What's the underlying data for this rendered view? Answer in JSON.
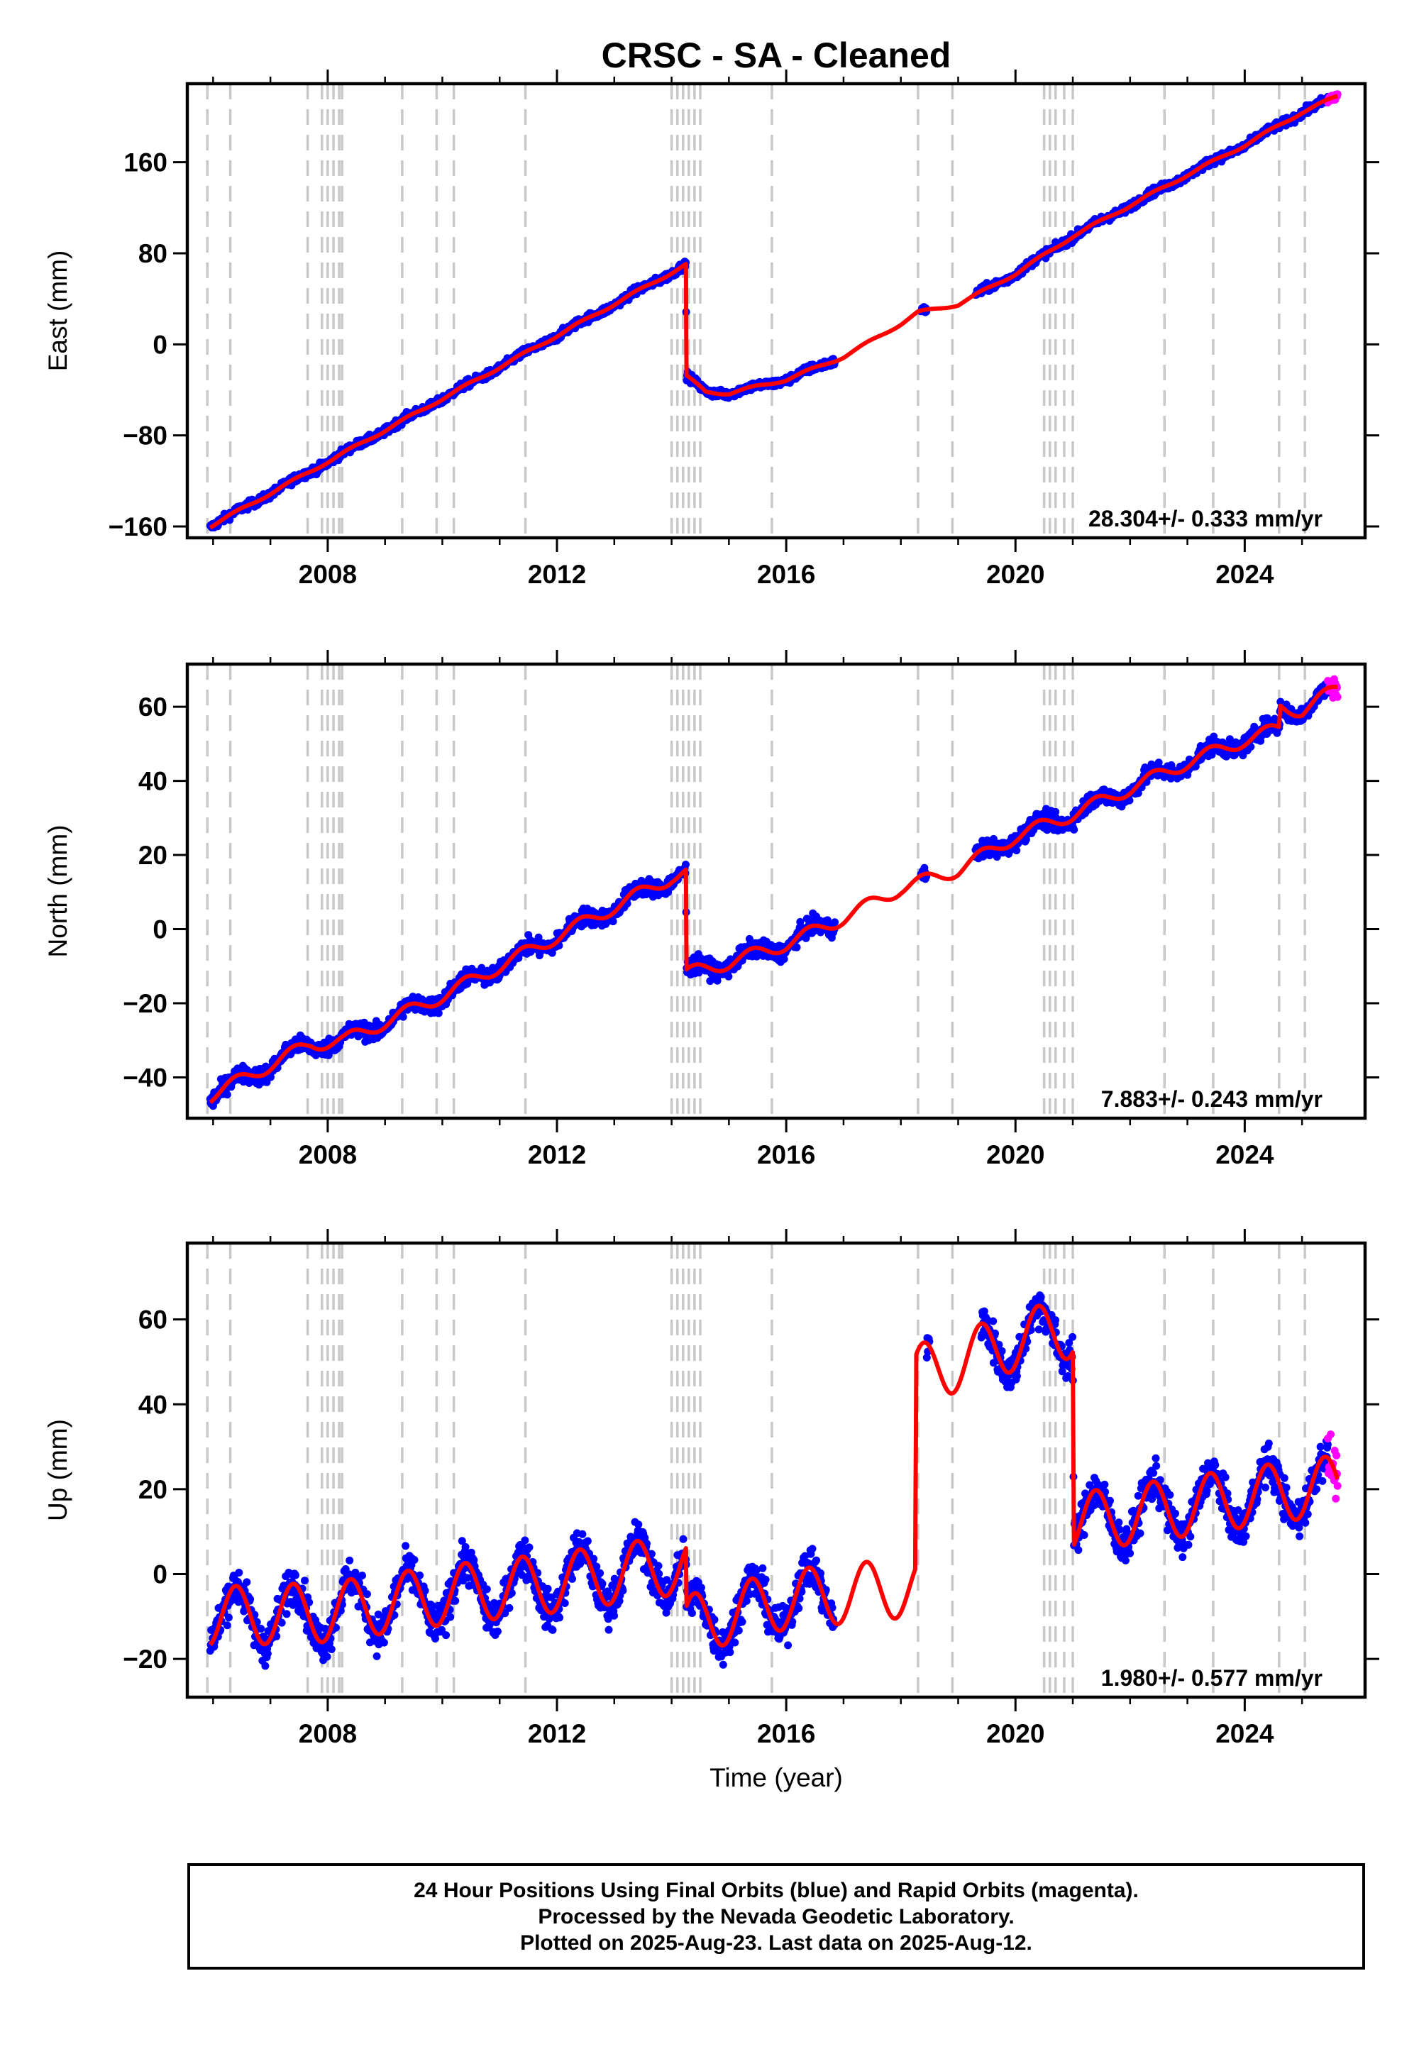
{
  "title": "CRSC  - SA - Cleaned",
  "xlabel": "Time (year)",
  "colors": {
    "final": "#0000ff",
    "rapid": "#ff00ff",
    "model": "#ff0000",
    "breaks": "#c8c8c8"
  },
  "chart_data": [
    {
      "type": "scatter",
      "ylabel": "East (mm)",
      "xlim": [
        2005.55,
        2026.1
      ],
      "ylim": [
        -170,
        229
      ],
      "xticks": [
        2008,
        2012,
        2016,
        2020,
        2024
      ],
      "yticks": [
        -160,
        -80,
        0,
        80,
        160
      ],
      "rate_label": "28.304+/- 0.333 mm/yr",
      "breaks": [
        2005.9,
        2006.3,
        2007.65,
        2007.9,
        2008.0,
        2008.1,
        2008.2,
        2008.25,
        2009.3,
        2009.9,
        2010.2,
        2011.45,
        2014.0,
        2014.1,
        2014.2,
        2014.3,
        2014.4,
        2014.5,
        2015.75,
        2018.3,
        2018.9,
        2020.5,
        2020.6,
        2020.7,
        2020.85,
        2021.0,
        2022.6,
        2023.45,
        2024.6,
        2025.05
      ],
      "data_start": 2005.95,
      "data_end": 2025.45,
      "rapid_end": 2025.62,
      "rate": 28.304,
      "anchors": [
        [
          2005.95,
          -160
        ],
        [
          2014.25,
          70
        ],
        [
          2014.26,
          -28
        ],
        [
          2014.6,
          -42
        ],
        [
          2015.0,
          -43
        ],
        [
          2016.0,
          -31
        ],
        [
          2017.0,
          -11
        ],
        [
          2018.0,
          18
        ],
        [
          2018.3,
          28
        ],
        [
          2019.0,
          35
        ],
        [
          2020.0,
          62
        ],
        [
          2021.0,
          95
        ],
        [
          2022.0,
          122
        ],
        [
          2023.0,
          149
        ],
        [
          2024.0,
          175
        ],
        [
          2025.0,
          204
        ],
        [
          2025.62,
          218
        ]
      ],
      "seasonal": 1.2,
      "noise": 2.5,
      "gaps": [
        [
          2016.85,
          2018.35
        ],
        [
          2018.45,
          2019.3
        ]
      ]
    },
    {
      "type": "scatter",
      "ylabel": "North (mm)",
      "xlim": [
        2005.55,
        2026.1
      ],
      "ylim": [
        -51,
        71.5
      ],
      "xticks": [
        2008,
        2012,
        2016,
        2020,
        2024
      ],
      "yticks": [
        -40,
        -20,
        0,
        20,
        40,
        60
      ],
      "rate_label": "7.883+/- 0.243 mm/yr",
      "breaks": [
        2005.9,
        2006.3,
        2007.65,
        2007.9,
        2008.0,
        2008.1,
        2008.2,
        2008.25,
        2009.3,
        2009.9,
        2010.2,
        2011.45,
        2014.0,
        2014.1,
        2014.2,
        2014.3,
        2014.4,
        2014.5,
        2015.75,
        2018.3,
        2018.9,
        2020.5,
        2020.6,
        2020.7,
        2020.85,
        2021.0,
        2022.6,
        2023.45,
        2024.6,
        2025.05
      ],
      "data_start": 2005.95,
      "data_end": 2025.45,
      "rapid_end": 2025.62,
      "rate": 7.883,
      "anchors": [
        [
          2005.95,
          -45
        ],
        [
          2007.7,
          -31
        ],
        [
          2008.3,
          -30
        ],
        [
          2010.0,
          -18
        ],
        [
          2012.0,
          -2
        ],
        [
          2014.0,
          14
        ],
        [
          2014.25,
          15
        ],
        [
          2014.26,
          -12
        ],
        [
          2015.0,
          -9
        ],
        [
          2016.0,
          -4
        ],
        [
          2017.0,
          3
        ],
        [
          2018.0,
          11
        ],
        [
          2019.0,
          16
        ],
        [
          2020.0,
          25
        ],
        [
          2021.0,
          31
        ],
        [
          2022.0,
          38
        ],
        [
          2023.0,
          45
        ],
        [
          2024.0,
          51
        ],
        [
          2024.6,
          54
        ],
        [
          2024.62,
          60
        ],
        [
          2025.0,
          59
        ],
        [
          2025.62,
          65
        ]
      ],
      "seasonal": 1.8,
      "noise": 1.6,
      "gaps": [
        [
          2016.85,
          2018.35
        ],
        [
          2018.45,
          2019.3
        ]
      ]
    },
    {
      "type": "scatter",
      "ylabel": "Up (mm)",
      "xlim": [
        2005.55,
        2026.1
      ],
      "ylim": [
        -29,
        78
      ],
      "xticks": [
        2008,
        2012,
        2016,
        2020,
        2024
      ],
      "yticks": [
        -20,
        0,
        20,
        40,
        60
      ],
      "rate_label": "1.980+/- 0.577 mm/yr",
      "breaks": [
        2005.9,
        2006.3,
        2007.65,
        2007.9,
        2008.0,
        2008.1,
        2008.2,
        2008.25,
        2009.3,
        2009.9,
        2010.2,
        2011.45,
        2014.0,
        2014.1,
        2014.2,
        2014.3,
        2014.4,
        2014.5,
        2015.75,
        2018.3,
        2018.9,
        2020.5,
        2020.6,
        2020.7,
        2020.85,
        2021.0,
        2022.6,
        2023.45,
        2024.6,
        2025.05
      ],
      "data_start": 2005.95,
      "data_end": 2025.45,
      "rapid_end": 2025.62,
      "rate": 1.98,
      "anchors": [
        [
          2005.95,
          -10
        ],
        [
          2008.0,
          -9
        ],
        [
          2010.0,
          -5
        ],
        [
          2012.0,
          -2
        ],
        [
          2014.0,
          2
        ],
        [
          2014.25,
          2
        ],
        [
          2014.26,
          -12
        ],
        [
          2016.0,
          -6
        ],
        [
          2018.25,
          -3
        ],
        [
          2018.27,
          47
        ],
        [
          2019.0,
          50
        ],
        [
          2020.0,
          55
        ],
        [
          2021.0,
          58
        ],
        [
          2021.02,
          12
        ],
        [
          2022.0,
          14
        ],
        [
          2023.0,
          16
        ],
        [
          2024.0,
          18
        ],
        [
          2025.0,
          20
        ],
        [
          2025.62,
          21
        ]
      ],
      "seasonal": 7,
      "noise": 3.2,
      "gaps": [
        [
          2016.85,
          2018.45
        ],
        [
          2018.5,
          2019.4
        ]
      ]
    }
  ],
  "footer": {
    "line1": "24 Hour Positions Using Final Orbits (blue) and Rapid Orbits (magenta).",
    "line2": "Processed by the Nevada Geodetic Laboratory.",
    "line3": "Plotted on 2025-Aug-23. Last data on 2025-Aug-12."
  }
}
